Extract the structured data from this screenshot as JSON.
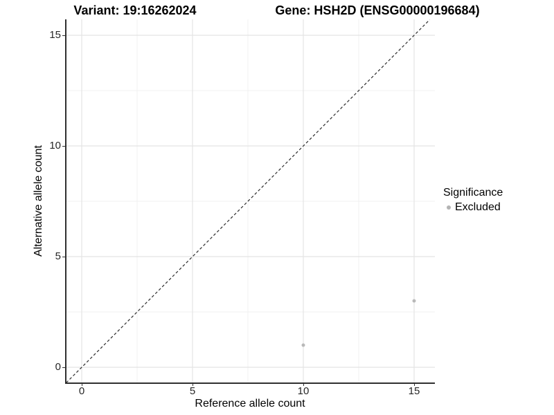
{
  "chart_data": {
    "type": "scatter",
    "titles": {
      "left": "Variant: 19:16262024",
      "right": "Gene: HSH2D (ENSG00000196684)"
    },
    "xlabel": "Reference allele count",
    "ylabel": "Alternative allele count",
    "xticks": [
      0,
      5,
      10,
      15
    ],
    "yticks": [
      0,
      5,
      10,
      15
    ],
    "minor_ticks_x": [
      2.5,
      7.5,
      12.5
    ],
    "minor_ticks_y": [
      2.5,
      7.5,
      12.5
    ],
    "xlim": [
      -0.7,
      15.9
    ],
    "ylim": [
      -0.7,
      15.7
    ],
    "grid": "major+minor",
    "abline": {
      "slope": 1,
      "intercept": 0,
      "linetype": "dashed",
      "color": "#2a2a2a"
    },
    "series": [
      {
        "name": "Excluded",
        "color": "#b9b9b9",
        "marker": "circle",
        "size": 5,
        "points": [
          [
            10,
            1
          ],
          [
            15,
            3
          ]
        ]
      }
    ],
    "legend": {
      "title": "Significance",
      "position": "right",
      "entries": [
        {
          "label": "Excluded",
          "color": "#b3b3b3"
        }
      ]
    }
  },
  "colors": {
    "grid_major": "#e4e4e4",
    "grid_minor": "#f1f1f1",
    "axis_line": "#2f2f2f",
    "tick_label": "#262626",
    "title": "#000000",
    "background": "#ffffff"
  }
}
